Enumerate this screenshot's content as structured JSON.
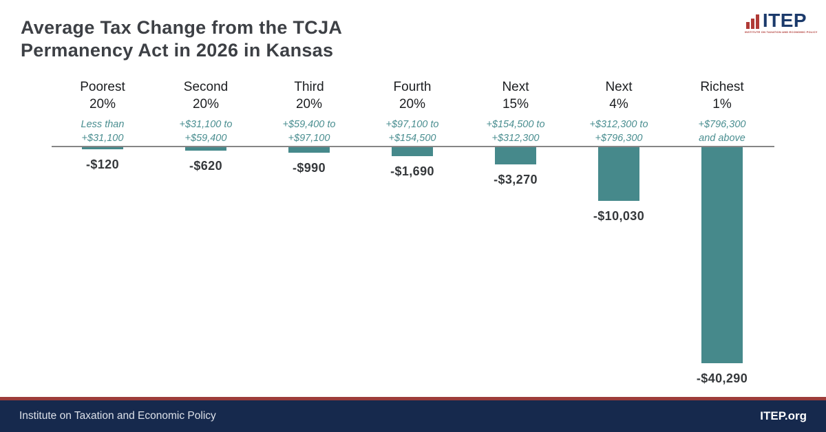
{
  "header": {
    "title_line1": "Average Tax Change from the TCJA",
    "title_line2": "Permanency Act in 2026 in Kansas",
    "logo": {
      "wordmark": "ITEP",
      "tagline": "INSTITUTE ON TAXATION AND ECONOMIC POLICY",
      "navy": "#1b3a6b",
      "red": "#b03a36"
    }
  },
  "chart_data": {
    "type": "bar",
    "title": "Average Tax Change from the TCJA Permanency Act in 2026 in Kansas",
    "unit": "USD",
    "baseline_value": 0,
    "bar_color": "#46898b",
    "axis_line_color": "#858585",
    "categories": [
      "Poorest 20%",
      "Second 20%",
      "Third 20%",
      "Fourth 20%",
      "Next 15%",
      "Next 4%",
      "Richest 1%"
    ],
    "values": [
      -120,
      -620,
      -990,
      -1690,
      -3270,
      -10030,
      -40290
    ],
    "columns": [
      {
        "group": [
          "Poorest",
          "20%"
        ],
        "income_range": [
          "Less than",
          "+$31,100"
        ],
        "value": -120,
        "label": "-$120"
      },
      {
        "group": [
          "Second",
          "20%"
        ],
        "income_range": [
          "+$31,100 to",
          "+$59,400"
        ],
        "value": -620,
        "label": "-$620"
      },
      {
        "group": [
          "Third",
          "20%"
        ],
        "income_range": [
          "+$59,400 to",
          "+$97,100"
        ],
        "value": -990,
        "label": "-$990"
      },
      {
        "group": [
          "Fourth",
          "20%"
        ],
        "income_range": [
          "+$97,100 to",
          "+$154,500"
        ],
        "value": -1690,
        "label": "-$1,690"
      },
      {
        "group": [
          "Next",
          "15%"
        ],
        "income_range": [
          "+$154,500 to",
          "+$312,300"
        ],
        "value": -3270,
        "label": "-$3,270"
      },
      {
        "group": [
          "Next",
          "4%"
        ],
        "income_range": [
          "+$312,300 to",
          "+$796,300"
        ],
        "value": -10030,
        "label": "-$10,030"
      },
      {
        "group": [
          "Richest",
          "1%"
        ],
        "income_range": [
          "+$796,300",
          "and above"
        ],
        "value": -40290,
        "label": "-$40,290"
      }
    ]
  },
  "footer": {
    "left_text": "Institute on Taxation and Economic Policy",
    "right_text": "ITEP.org",
    "background": "#16294d",
    "accent_line": "#9d3c3a"
  }
}
